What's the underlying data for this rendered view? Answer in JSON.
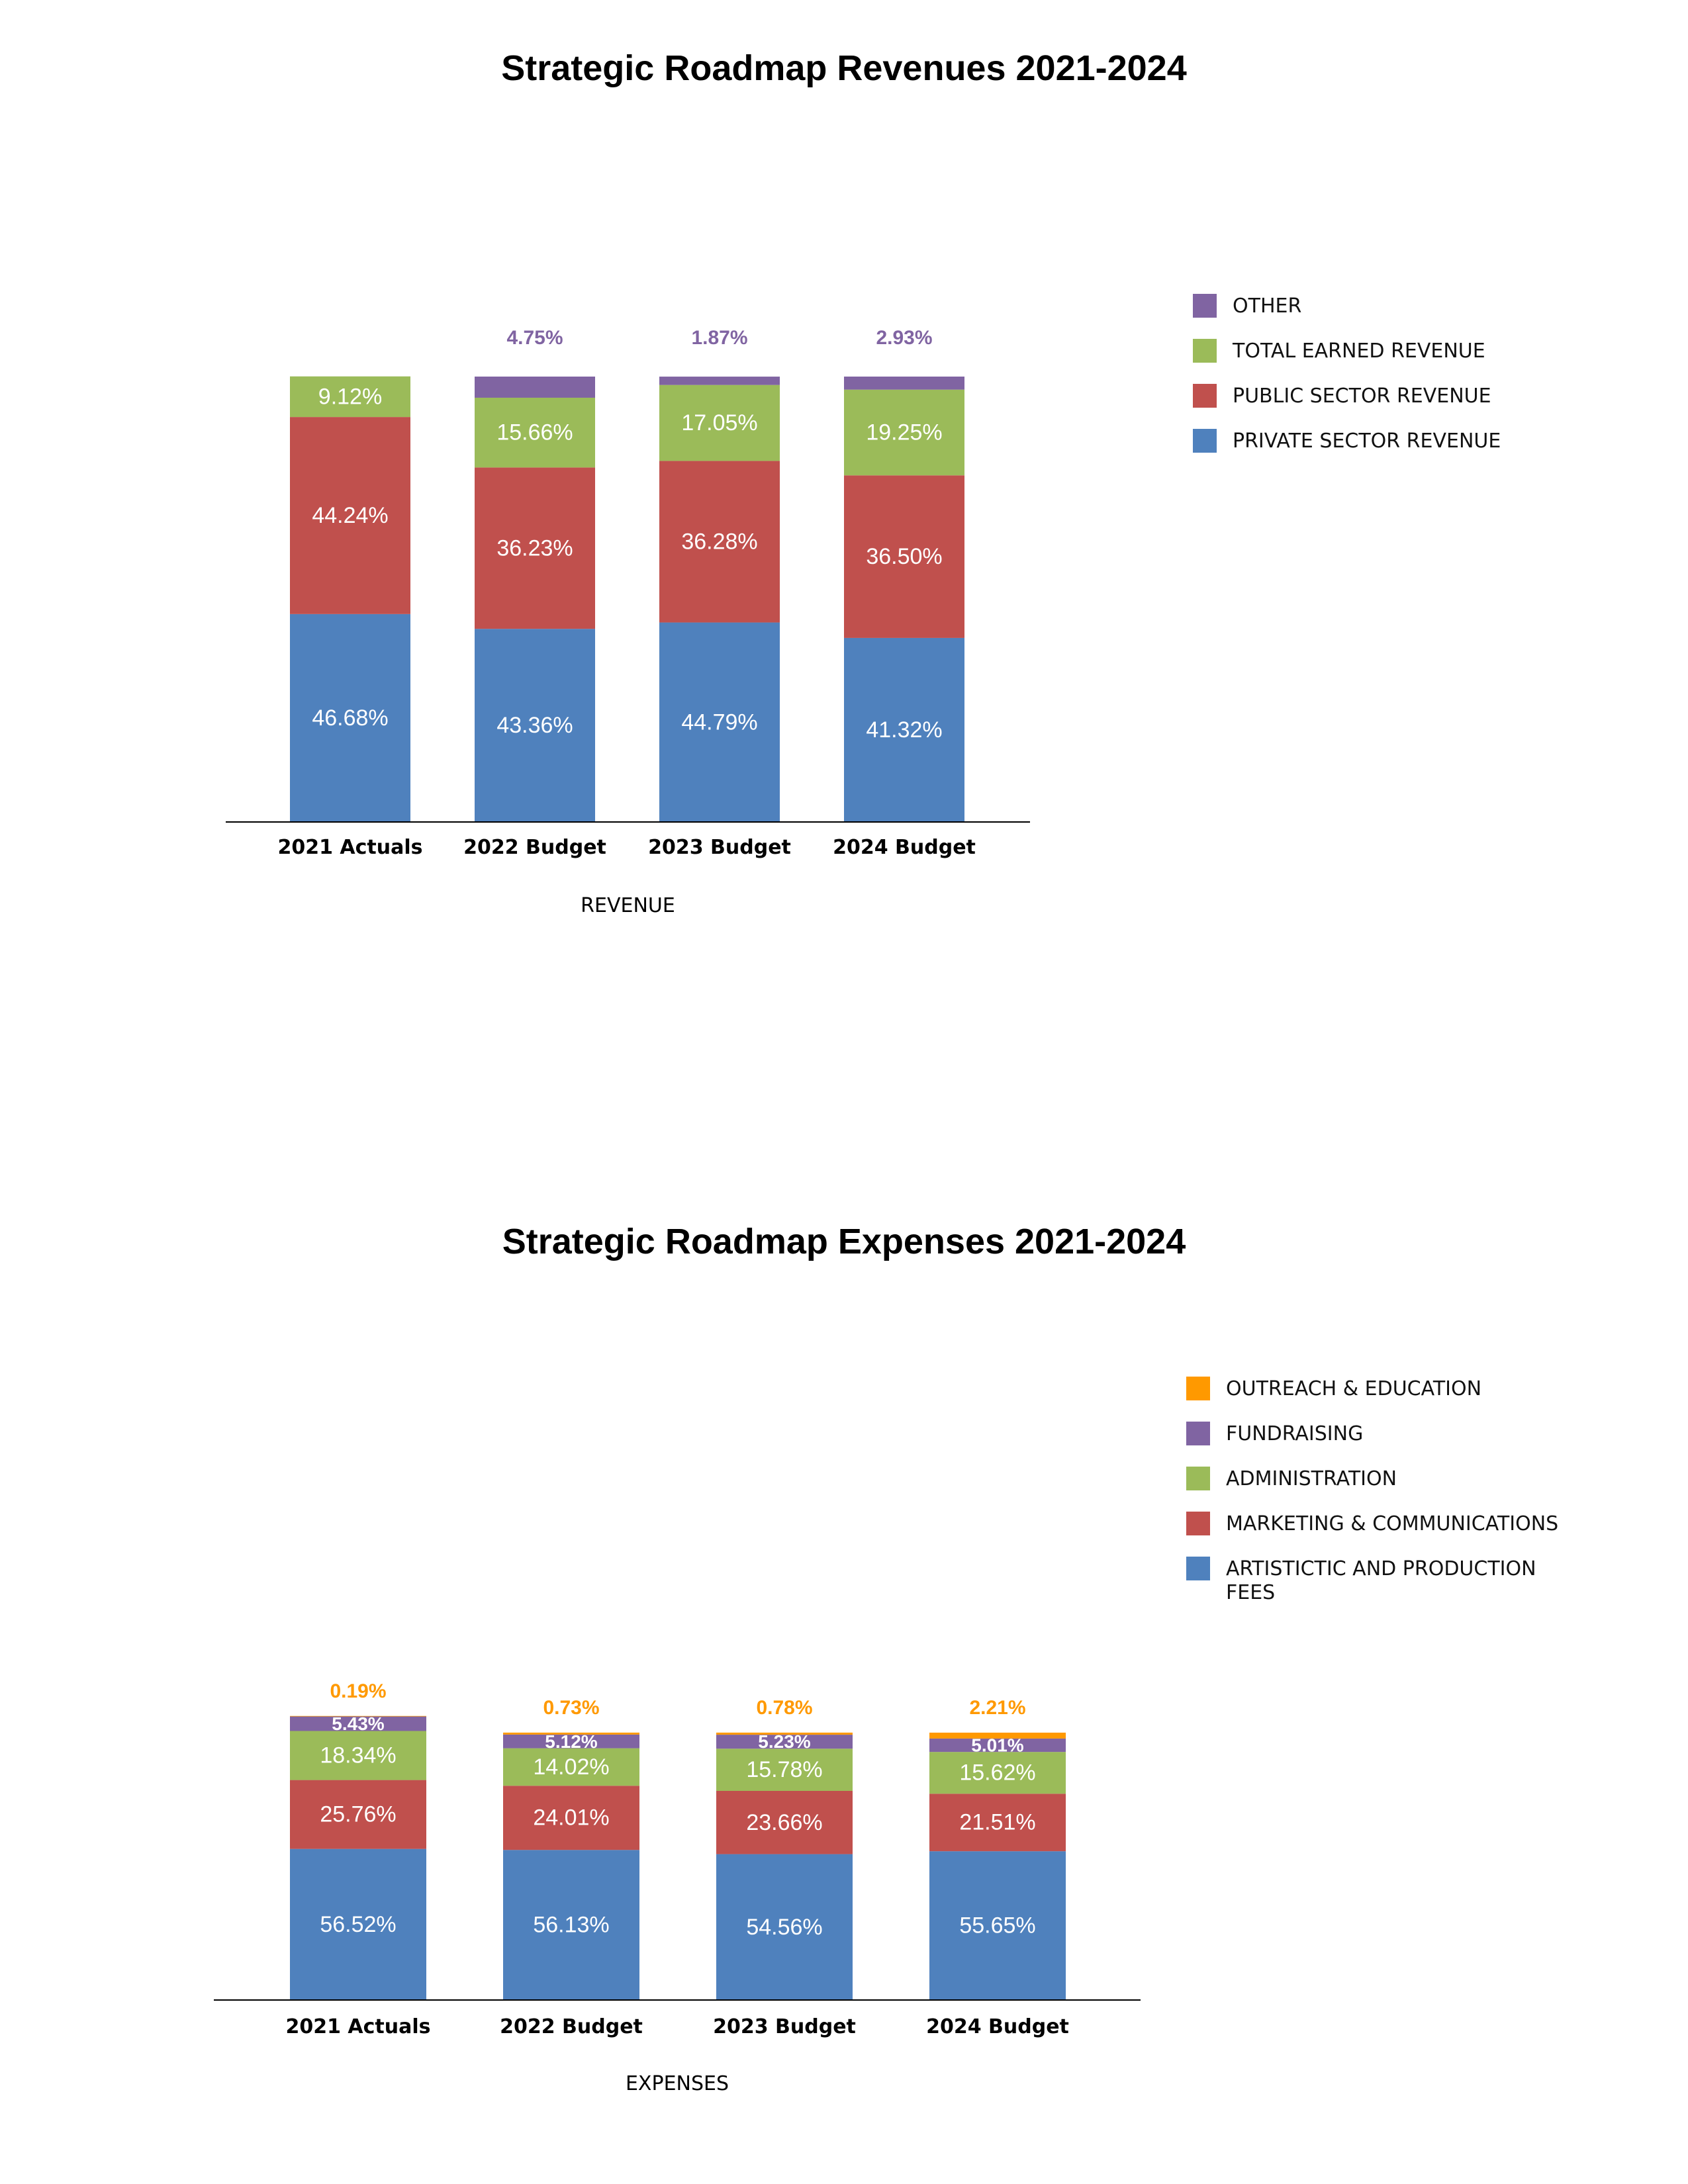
{
  "chart_data": [
    {
      "type": "bar",
      "stacked": true,
      "title": "Strategic Roadmap Revenues 2021-2024",
      "xlabel": "REVENUE",
      "categories": [
        "2021 Actuals",
        "2022 Budget",
        "2023 Budget",
        "2024 Budget"
      ],
      "series": [
        {
          "name": "PRIVATE SECTOR REVENUE",
          "color": "#4f81bd",
          "values": [
            46.68,
            43.36,
            44.79,
            41.32
          ],
          "labels": [
            "46.68%",
            "43.36%",
            "44.79%",
            "41.32%"
          ]
        },
        {
          "name": "PUBLIC SECTOR REVENUE",
          "color": "#c0504d",
          "values": [
            44.24,
            36.23,
            36.28,
            36.5
          ],
          "labels": [
            "44.24%",
            "36.23%",
            "36.28%",
            "36.50%"
          ]
        },
        {
          "name": "TOTAL EARNED REVENUE",
          "color": "#9bbb59",
          "values": [
            9.12,
            15.66,
            17.05,
            19.25
          ],
          "labels": [
            "9.12%",
            "15.66%",
            "17.05%",
            "19.25%"
          ]
        },
        {
          "name": "OTHER",
          "color": "#8064a2",
          "values": [
            0,
            4.75,
            1.87,
            2.93
          ],
          "labels": [
            "",
            "4.75%",
            "1.87%",
            "2.93%"
          ]
        }
      ],
      "ylim": [
        0,
        100
      ],
      "legend_position": "right"
    },
    {
      "type": "bar",
      "stacked": true,
      "title": "Strategic Roadmap Expenses 2021-2024",
      "xlabel": "EXPENSES",
      "categories": [
        "2021 Actuals",
        "2022 Budget",
        "2023 Budget",
        "2024 Budget"
      ],
      "series": [
        {
          "name": "ARTISTICTIC AND PRODUCTION FEES",
          "color": "#4f81bd",
          "values": [
            56.52,
            56.13,
            54.56,
            55.65
          ],
          "labels": [
            "56.52%",
            "56.13%",
            "54.56%",
            "55.65%"
          ]
        },
        {
          "name": "MARKETING & COMMUNICATIONS",
          "color": "#c0504d",
          "values": [
            25.76,
            24.01,
            23.66,
            21.51
          ],
          "labels": [
            "25.76%",
            "24.01%",
            "23.66%",
            "21.51%"
          ]
        },
        {
          "name": "ADMINISTRATION",
          "color": "#9bbb59",
          "values": [
            18.34,
            14.02,
            15.78,
            15.62
          ],
          "labels": [
            "18.34%",
            "14.02%",
            "15.78%",
            "15.62%"
          ]
        },
        {
          "name": "FUNDRAISING",
          "color": "#8064a2",
          "values": [
            5.43,
            5.12,
            5.23,
            5.01
          ],
          "labels": [
            "5.43%",
            "5.12%",
            "5.23%",
            "5.01%"
          ]
        },
        {
          "name": "OUTREACH & EDUCATION",
          "color": "#ff9900",
          "values": [
            0.19,
            0.73,
            0.78,
            2.21
          ],
          "labels": [
            "0.19%",
            "0.73%",
            "0.78%",
            "2.21%"
          ]
        }
      ],
      "ylim": [
        0,
        106.24
      ],
      "legend_position": "right"
    }
  ]
}
